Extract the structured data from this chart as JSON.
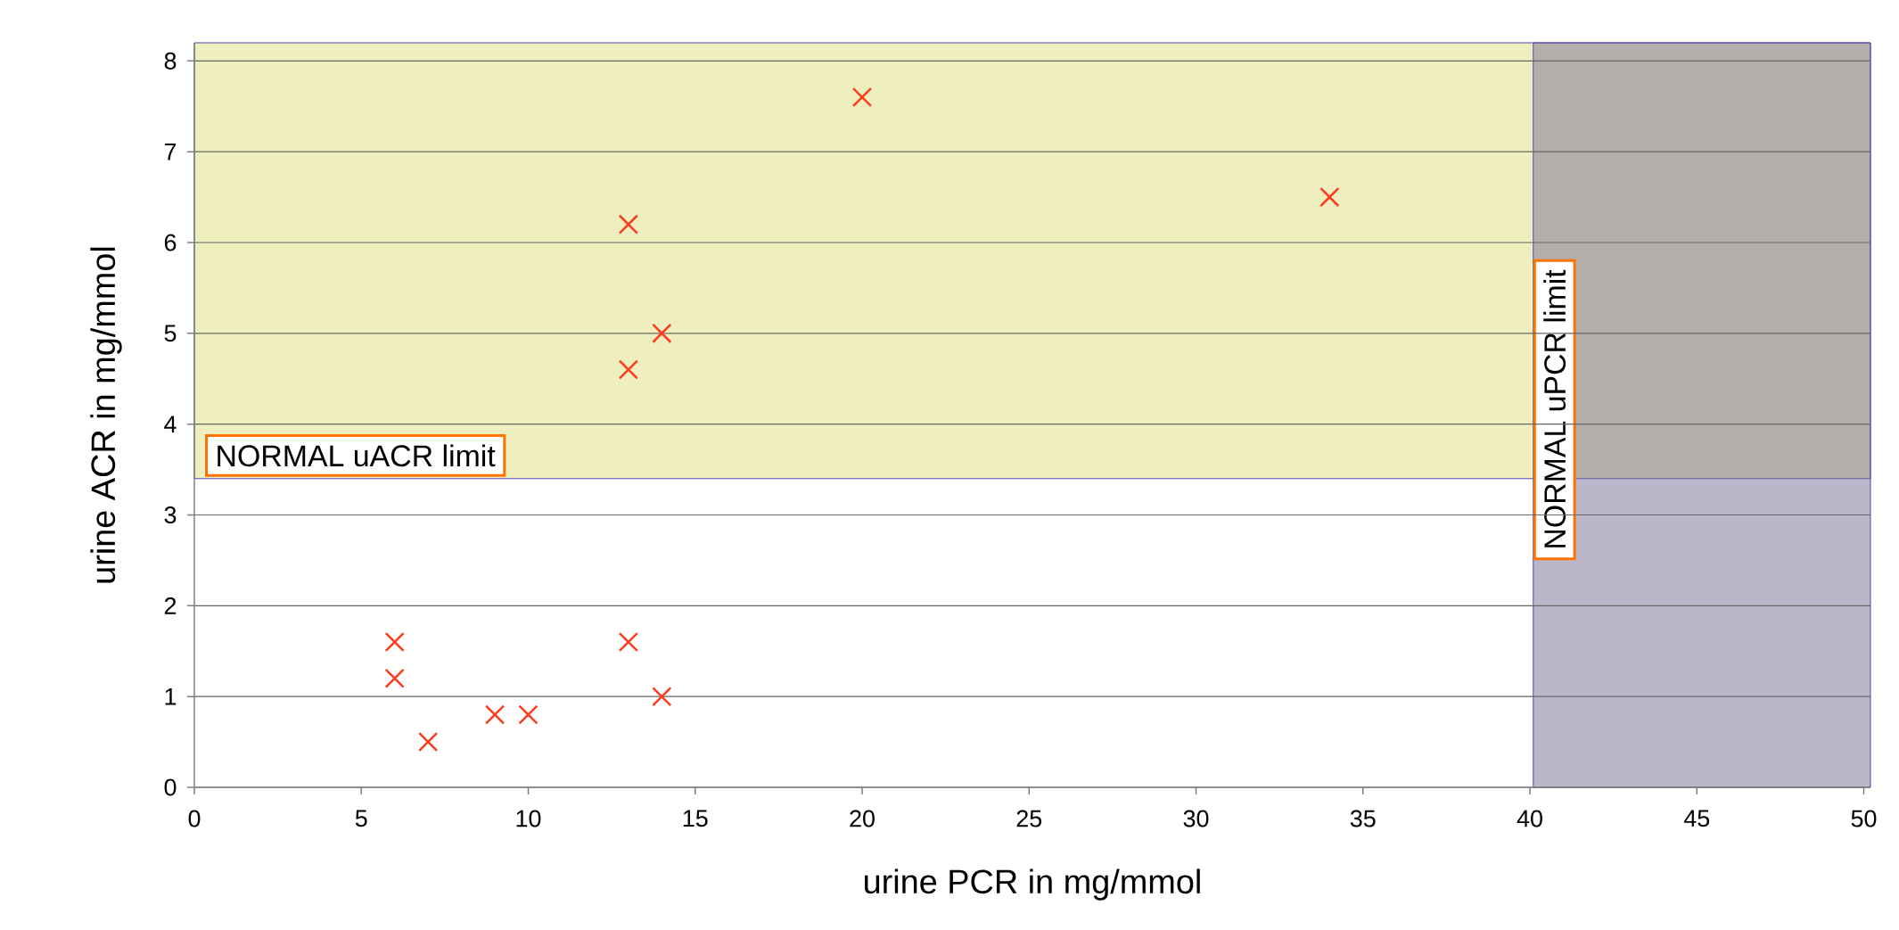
{
  "chart_data": {
    "type": "scatter",
    "xlabel": "urine PCR in mg/mmol",
    "ylabel": "urine ACR in mg/mmol",
    "x": [
      6,
      6,
      7,
      9,
      10,
      13,
      14,
      13,
      14,
      13,
      20,
      34
    ],
    "values": [
      1.6,
      1.2,
      0.5,
      0.8,
      0.8,
      1.6,
      1.0,
      4.6,
      5.0,
      6.2,
      7.6,
      6.5
    ],
    "color": "#ff3b1f",
    "marker": "cross",
    "xlim": [
      0,
      50.2
    ],
    "ylim": [
      0,
      8.2
    ],
    "xticks": [
      0,
      5,
      10,
      15,
      20,
      25,
      30,
      35,
      40,
      45,
      50
    ],
    "yticks": [
      0,
      1,
      2,
      3,
      4,
      5,
      6,
      7,
      8
    ],
    "grid": "y",
    "bands": [
      {
        "axis": "y",
        "from": 3.4,
        "to": 8.2,
        "label": "NORMAL uACR limit",
        "color": "#eeeebf"
      },
      {
        "axis": "x",
        "from": 40.1,
        "to": 50.2,
        "label": "NORMAL uPCR limit",
        "color": "#7a6e96"
      }
    ]
  }
}
